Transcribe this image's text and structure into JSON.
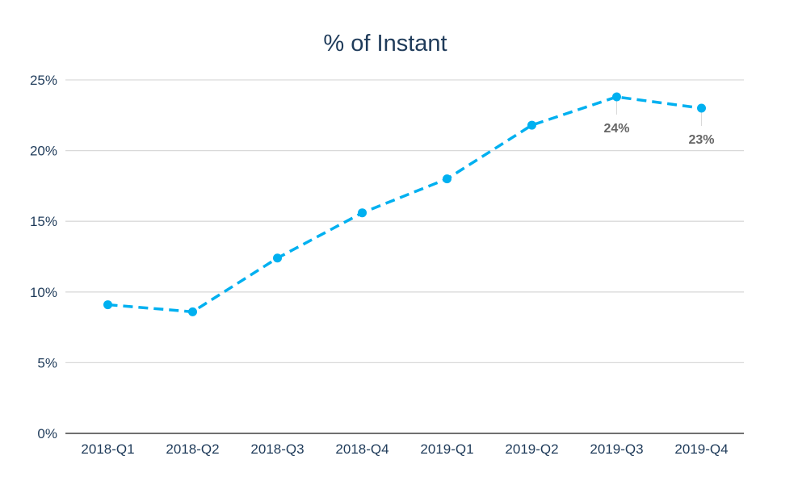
{
  "chart_data": {
    "type": "line",
    "title": "% of Instant",
    "xlabel": "",
    "ylabel": "",
    "categories": [
      "2018-Q1",
      "2018-Q2",
      "2018-Q3",
      "2018-Q4",
      "2019-Q1",
      "2019-Q2",
      "2019-Q3",
      "2019-Q4"
    ],
    "series": [
      {
        "values": [
          9.1,
          8.6,
          12.4,
          15.6,
          18.0,
          21.8,
          23.8,
          23.0
        ],
        "color": "#00b0f0",
        "line_style": "dashed"
      }
    ],
    "data_labels": [
      {
        "index": 6,
        "text": "24%"
      },
      {
        "index": 7,
        "text": "23%"
      }
    ],
    "y_ticks": [
      "0%",
      "5%",
      "10%",
      "15%",
      "20%",
      "25%"
    ],
    "y_tick_values": [
      0,
      5,
      10,
      15,
      20,
      25
    ],
    "ylim": [
      0,
      25
    ],
    "grid": true,
    "legend": "none",
    "colors": {
      "grid": "#d9d9d9",
      "axis": "#404040",
      "text": "#1f3b5a",
      "label": "#666666"
    }
  }
}
